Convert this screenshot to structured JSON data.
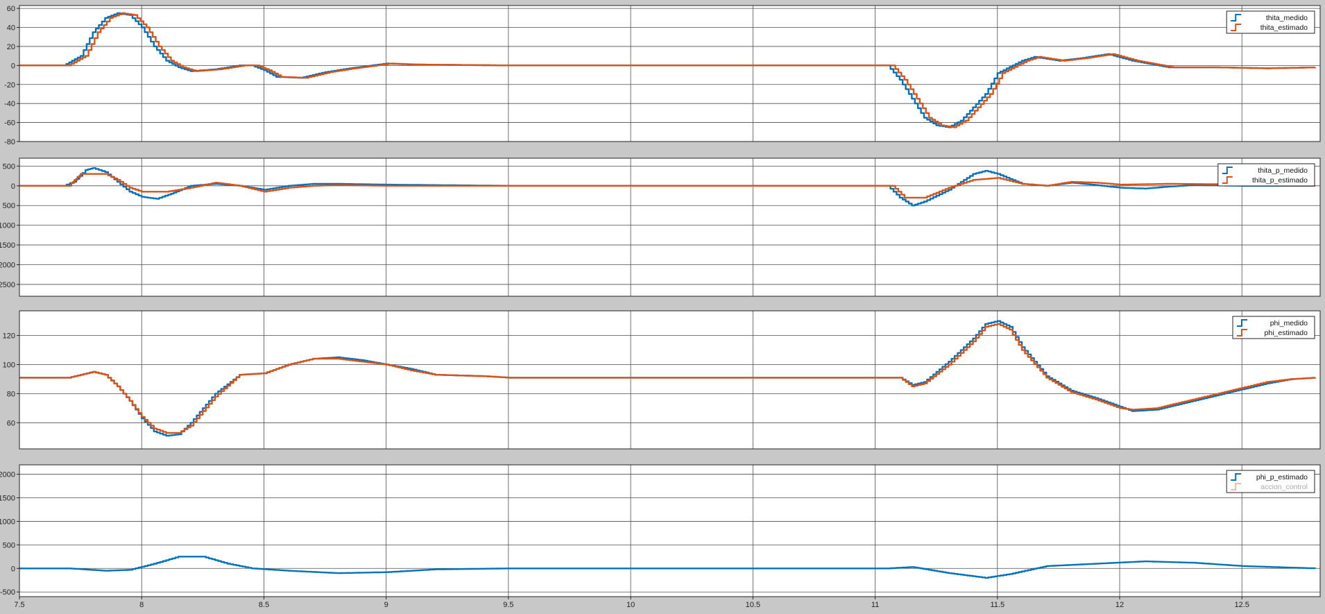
{
  "chart_data": [
    {
      "type": "line",
      "ylim": [
        -80,
        63
      ],
      "yticks": [
        -80,
        -60,
        -40,
        -20,
        0,
        20,
        40,
        60
      ],
      "series": [
        {
          "name": "thita_medido",
          "color": "#0072BD",
          "points": [
            [
              7.5,
              0
            ],
            [
              7.68,
              0
            ],
            [
              7.75,
              10
            ],
            [
              7.8,
              35
            ],
            [
              7.85,
              50
            ],
            [
              7.9,
              55
            ],
            [
              7.95,
              53
            ],
            [
              8.0,
              40
            ],
            [
              8.05,
              20
            ],
            [
              8.1,
              5
            ],
            [
              8.15,
              -2
            ],
            [
              8.2,
              -6
            ],
            [
              8.3,
              -4
            ],
            [
              8.4,
              0
            ],
            [
              8.45,
              0
            ],
            [
              8.5,
              -5
            ],
            [
              8.55,
              -12
            ],
            [
              8.65,
              -13
            ],
            [
              8.75,
              -7
            ],
            [
              8.85,
              -3
            ],
            [
              9.0,
              2
            ],
            [
              9.1,
              1
            ],
            [
              9.5,
              0
            ],
            [
              11.05,
              0
            ],
            [
              11.1,
              -15
            ],
            [
              11.15,
              -35
            ],
            [
              11.2,
              -55
            ],
            [
              11.25,
              -63
            ],
            [
              11.3,
              -65
            ],
            [
              11.35,
              -58
            ],
            [
              11.45,
              -30
            ],
            [
              11.5,
              -8
            ],
            [
              11.6,
              5
            ],
            [
              11.65,
              9
            ],
            [
              11.75,
              5
            ],
            [
              11.85,
              8
            ],
            [
              11.95,
              12
            ],
            [
              12.05,
              5
            ],
            [
              12.2,
              -2
            ],
            [
              12.4,
              -2
            ],
            [
              12.6,
              -3
            ],
            [
              12.8,
              -2
            ]
          ]
        },
        {
          "name": "thita_estimado",
          "color": "#D95319",
          "points": [
            [
              7.5,
              0
            ],
            [
              7.7,
              0
            ],
            [
              7.77,
              10
            ],
            [
              7.82,
              35
            ],
            [
              7.87,
              50
            ],
            [
              7.92,
              55
            ],
            [
              7.97,
              53
            ],
            [
              8.02,
              40
            ],
            [
              8.07,
              20
            ],
            [
              8.12,
              5
            ],
            [
              8.17,
              -2
            ],
            [
              8.22,
              -6
            ],
            [
              8.32,
              -4
            ],
            [
              8.42,
              0
            ],
            [
              8.47,
              0
            ],
            [
              8.52,
              -5
            ],
            [
              8.57,
              -12
            ],
            [
              8.67,
              -13
            ],
            [
              8.77,
              -7
            ],
            [
              8.87,
              -3
            ],
            [
              9.02,
              2
            ],
            [
              9.12,
              1
            ],
            [
              9.5,
              0
            ],
            [
              11.07,
              0
            ],
            [
              11.12,
              -15
            ],
            [
              11.17,
              -35
            ],
            [
              11.22,
              -55
            ],
            [
              11.27,
              -63
            ],
            [
              11.32,
              -65
            ],
            [
              11.37,
              -58
            ],
            [
              11.47,
              -30
            ],
            [
              11.52,
              -8
            ],
            [
              11.62,
              5
            ],
            [
              11.67,
              9
            ],
            [
              11.77,
              5
            ],
            [
              11.87,
              8
            ],
            [
              11.97,
              12
            ],
            [
              12.07,
              5
            ],
            [
              12.22,
              -2
            ],
            [
              12.4,
              -2
            ],
            [
              12.6,
              -3
            ],
            [
              12.8,
              -2
            ]
          ]
        }
      ]
    },
    {
      "type": "line",
      "ylim": [
        -2800,
        700
      ],
      "yticks": [
        500,
        0,
        -500,
        -1000,
        -1500,
        -2000,
        -2500
      ],
      "ytick_labels": [
        "500",
        "0",
        "500",
        "1000",
        "1500",
        "2000",
        "2500"
      ],
      "series": [
        {
          "name": "thita_p_medido",
          "color": "#0072BD",
          "points": [
            [
              7.5,
              0
            ],
            [
              7.68,
              0
            ],
            [
              7.72,
              100
            ],
            [
              7.77,
              400
            ],
            [
              7.8,
              450
            ],
            [
              7.85,
              350
            ],
            [
              7.9,
              100
            ],
            [
              7.95,
              -150
            ],
            [
              8.0,
              -280
            ],
            [
              8.06,
              -330
            ],
            [
              8.12,
              -200
            ],
            [
              8.2,
              0
            ],
            [
              8.3,
              50
            ],
            [
              8.4,
              0
            ],
            [
              8.5,
              -100
            ],
            [
              8.6,
              0
            ],
            [
              8.7,
              50
            ],
            [
              8.8,
              50
            ],
            [
              9.0,
              30
            ],
            [
              9.5,
              0
            ],
            [
              11.05,
              0
            ],
            [
              11.1,
              -300
            ],
            [
              11.15,
              -500
            ],
            [
              11.2,
              -400
            ],
            [
              11.3,
              -100
            ],
            [
              11.4,
              300
            ],
            [
              11.45,
              380
            ],
            [
              11.5,
              300
            ],
            [
              11.6,
              50
            ],
            [
              11.7,
              0
            ],
            [
              11.8,
              80
            ],
            [
              11.9,
              20
            ],
            [
              12.0,
              -50
            ],
            [
              12.1,
              -70
            ],
            [
              12.2,
              -20
            ],
            [
              12.3,
              20
            ],
            [
              12.5,
              0
            ],
            [
              12.8,
              0
            ]
          ]
        },
        {
          "name": "thita_p_estimado",
          "color": "#D95319",
          "points": [
            [
              7.5,
              0
            ],
            [
              7.7,
              0
            ],
            [
              7.75,
              300
            ],
            [
              7.85,
              300
            ],
            [
              7.9,
              150
            ],
            [
              7.95,
              -50
            ],
            [
              8.0,
              -150
            ],
            [
              8.1,
              -150
            ],
            [
              8.2,
              -50
            ],
            [
              8.3,
              80
            ],
            [
              8.4,
              0
            ],
            [
              8.5,
              -150
            ],
            [
              8.6,
              -50
            ],
            [
              8.7,
              0
            ],
            [
              8.8,
              20
            ],
            [
              9.0,
              0
            ],
            [
              9.5,
              0
            ],
            [
              11.07,
              0
            ],
            [
              11.12,
              -300
            ],
            [
              11.2,
              -300
            ],
            [
              11.3,
              -50
            ],
            [
              11.4,
              150
            ],
            [
              11.5,
              200
            ],
            [
              11.6,
              50
            ],
            [
              11.7,
              0
            ],
            [
              11.8,
              100
            ],
            [
              11.9,
              80
            ],
            [
              12.0,
              30
            ],
            [
              12.2,
              50
            ],
            [
              12.4,
              40
            ],
            [
              12.6,
              10
            ],
            [
              12.8,
              0
            ]
          ]
        }
      ]
    },
    {
      "type": "line",
      "ylim": [
        42,
        137
      ],
      "yticks": [
        60,
        80,
        100,
        120
      ],
      "series": [
        {
          "name": "phi_medido",
          "color": "#0072BD",
          "points": [
            [
              7.5,
              91
            ],
            [
              7.7,
              91
            ],
            [
              7.8,
              95
            ],
            [
              7.85,
              93
            ],
            [
              7.9,
              85
            ],
            [
              7.95,
              75
            ],
            [
              8.0,
              63
            ],
            [
              8.05,
              54
            ],
            [
              8.1,
              51
            ],
            [
              8.15,
              52
            ],
            [
              8.2,
              60
            ],
            [
              8.3,
              80
            ],
            [
              8.4,
              93
            ],
            [
              8.5,
              94
            ],
            [
              8.6,
              100
            ],
            [
              8.7,
              104
            ],
            [
              8.8,
              105
            ],
            [
              8.9,
              103
            ],
            [
              9.0,
              100
            ],
            [
              9.1,
              97
            ],
            [
              9.2,
              93
            ],
            [
              9.4,
              92
            ],
            [
              9.5,
              91
            ],
            [
              11.1,
              91
            ],
            [
              11.15,
              86
            ],
            [
              11.2,
              88
            ],
            [
              11.3,
              102
            ],
            [
              11.4,
              118
            ],
            [
              11.45,
              128
            ],
            [
              11.5,
              130
            ],
            [
              11.55,
              126
            ],
            [
              11.6,
              112
            ],
            [
              11.7,
              92
            ],
            [
              11.8,
              82
            ],
            [
              11.9,
              77
            ],
            [
              12.0,
              71
            ],
            [
              12.05,
              68
            ],
            [
              12.15,
              69
            ],
            [
              12.3,
              75
            ],
            [
              12.5,
              83
            ],
            [
              12.6,
              87
            ],
            [
              12.7,
              90
            ],
            [
              12.8,
              91
            ]
          ]
        },
        {
          "name": "phi_estimado",
          "color": "#D95319",
          "points": [
            [
              7.5,
              91
            ],
            [
              7.7,
              91
            ],
            [
              7.8,
              95
            ],
            [
              7.85,
              93
            ],
            [
              7.9,
              85
            ],
            [
              7.95,
              75
            ],
            [
              8.0,
              64
            ],
            [
              8.05,
              56
            ],
            [
              8.1,
              53
            ],
            [
              8.15,
              53
            ],
            [
              8.2,
              58
            ],
            [
              8.3,
              78
            ],
            [
              8.4,
              93
            ],
            [
              8.5,
              94
            ],
            [
              8.6,
              100
            ],
            [
              8.7,
              104
            ],
            [
              8.8,
              104
            ],
            [
              8.9,
              102
            ],
            [
              9.0,
              100
            ],
            [
              9.1,
              96
            ],
            [
              9.2,
              93
            ],
            [
              9.4,
              92
            ],
            [
              9.5,
              91
            ],
            [
              11.1,
              91
            ],
            [
              11.15,
              85
            ],
            [
              11.2,
              87
            ],
            [
              11.3,
              100
            ],
            [
              11.4,
              116
            ],
            [
              11.45,
              126
            ],
            [
              11.5,
              128
            ],
            [
              11.55,
              124
            ],
            [
              11.6,
              110
            ],
            [
              11.7,
              91
            ],
            [
              11.8,
              81
            ],
            [
              11.9,
              76
            ],
            [
              12.0,
              70
            ],
            [
              12.05,
              69
            ],
            [
              12.15,
              70
            ],
            [
              12.3,
              76
            ],
            [
              12.5,
              84
            ],
            [
              12.6,
              88
            ],
            [
              12.7,
              90
            ],
            [
              12.8,
              91
            ]
          ]
        }
      ]
    },
    {
      "type": "line",
      "ylim": [
        -600,
        2200
      ],
      "yticks": [
        -500,
        0,
        500,
        1000,
        1500,
        2000
      ],
      "series": [
        {
          "name": "phi_p_estimado",
          "color": "#0072BD",
          "points": [
            [
              7.5,
              0
            ],
            [
              7.7,
              0
            ],
            [
              7.85,
              -50
            ],
            [
              7.95,
              -30
            ],
            [
              8.05,
              100
            ],
            [
              8.15,
              250
            ],
            [
              8.25,
              250
            ],
            [
              8.35,
              100
            ],
            [
              8.45,
              0
            ],
            [
              8.6,
              -50
            ],
            [
              8.8,
              -100
            ],
            [
              9.0,
              -80
            ],
            [
              9.2,
              -20
            ],
            [
              9.5,
              0
            ],
            [
              11.05,
              0
            ],
            [
              11.15,
              30
            ],
            [
              11.3,
              -100
            ],
            [
              11.45,
              -200
            ],
            [
              11.55,
              -120
            ],
            [
              11.7,
              50
            ],
            [
              11.9,
              100
            ],
            [
              12.1,
              150
            ],
            [
              12.3,
              120
            ],
            [
              12.5,
              50
            ],
            [
              12.8,
              0
            ]
          ]
        },
        {
          "name": "accion_control",
          "color": "#F4B8A0",
          "points": []
        }
      ]
    }
  ],
  "x": {
    "lim": [
      7.5,
      12.82
    ],
    "ticks": [
      7.5,
      8,
      8.5,
      9,
      9.5,
      10,
      10.5,
      11,
      11.5,
      12,
      12.5
    ]
  },
  "grid": true,
  "legend_placement": "top-right",
  "colors": {
    "axes_bg": "#ffffff",
    "figure_bg": "#c8c8c8",
    "grid": "#4d4d4d",
    "blue": "#0072BD",
    "orange": "#D95319"
  }
}
